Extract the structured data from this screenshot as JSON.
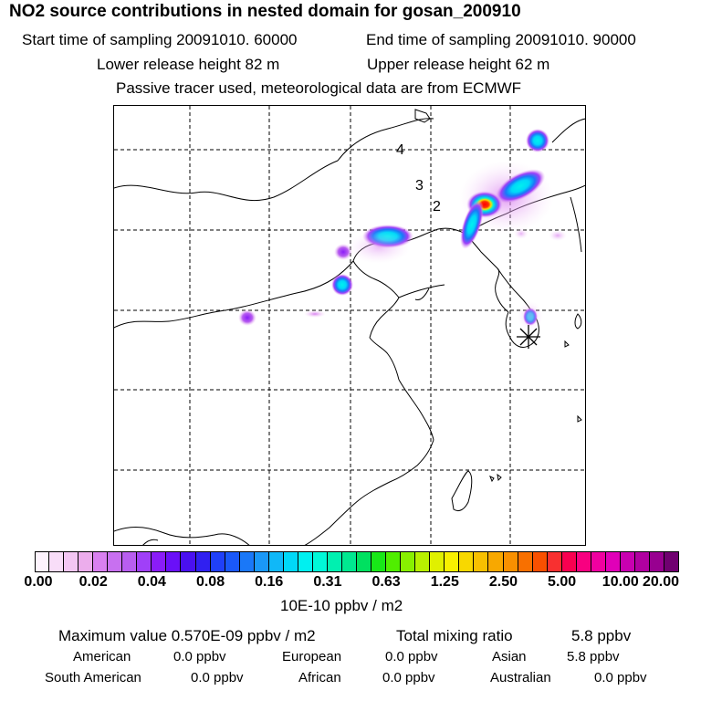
{
  "header": {
    "title": "NO2 source contributions in nested domain for gosan_200910",
    "start_label": "Start time of sampling 20091010. 60000",
    "end_label": "End time of sampling 20091010. 90000",
    "lower_label": "Lower release height   82 m",
    "upper_label": "Upper release height   62 m",
    "note": "Passive tracer used, meteorological data are from ECMWF"
  },
  "map": {
    "contour_labels": [
      "4",
      "3",
      "2"
    ],
    "receptor_marker": "asterisk-receptor",
    "plumes": [
      {
        "name": "plume-east",
        "intensity": 0.8
      },
      {
        "name": "plume-north",
        "intensity": 0.5
      },
      {
        "name": "plume-center",
        "intensity": 0.45
      },
      {
        "name": "plume-west",
        "intensity": 0.4
      },
      {
        "name": "plume-far-west",
        "intensity": 0.08
      },
      {
        "name": "plume-korea",
        "intensity": 0.4
      }
    ]
  },
  "colorbar": {
    "ticks": [
      "0.00",
      "0.02",
      "0.04",
      "0.08",
      "0.16",
      "0.31",
      "0.63",
      "1.25",
      "2.50",
      "5.00",
      "10.00",
      "20.00"
    ],
    "colors": [
      "#fdf3fd",
      "#f8ddf8",
      "#f3c6f3",
      "#ecadec",
      "#d980f0",
      "#c870f0",
      "#b85ef0",
      "#a040f8",
      "#8a1cf8",
      "#6a10f8",
      "#4a10f0",
      "#3020f0",
      "#2040f8",
      "#1a58f8",
      "#1a78f8",
      "#1a98f8",
      "#10b8f8",
      "#00d8f8",
      "#00f0f0",
      "#00f8d8",
      "#00f0b0",
      "#00e890",
      "#00e060",
      "#18e818",
      "#50ee00",
      "#88f000",
      "#b8f000",
      "#e0f000",
      "#f8f000",
      "#f8d800",
      "#f8c000",
      "#f8a800",
      "#f89000",
      "#f87000",
      "#f85000",
      "#f83030",
      "#f80050",
      "#f80080",
      "#f000a0",
      "#e000b8",
      "#c800b0",
      "#b000a0",
      "#980090",
      "#700070"
    ],
    "unit": "10E-10 ppbv / m2"
  },
  "summary": {
    "max_label": "Maximum value  0.570E-09 ppbv / m2",
    "total_label": "Total mixing ratio",
    "total_value": "5.8 ppbv",
    "regions": [
      {
        "name": "American",
        "value": "0.0 ppbv"
      },
      {
        "name": "European",
        "value": "0.0 ppbv"
      },
      {
        "name": "Asian",
        "value": "5.8 ppbv"
      },
      {
        "name": "South American",
        "value": "0.0 ppbv"
      },
      {
        "name": "African",
        "value": "0.0 ppbv"
      },
      {
        "name": "Australian",
        "value": "0.0 ppbv"
      }
    ]
  }
}
